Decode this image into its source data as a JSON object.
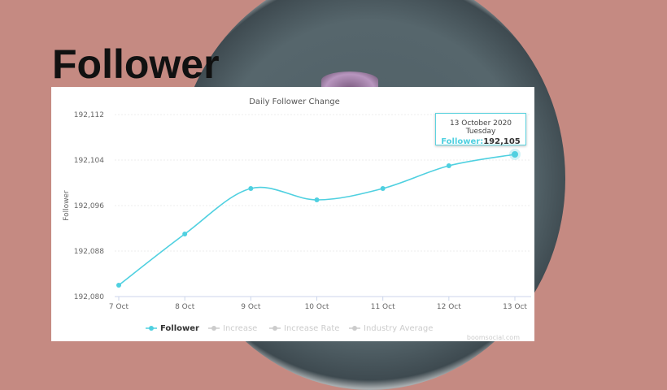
{
  "heading": "Follower",
  "watermark": "boomsocial.com",
  "tooltip": {
    "date": "13 October 2020 Tuesday",
    "label": "Follower:",
    "value": "192,105"
  },
  "colors": {
    "series": "#4fd0e0",
    "background": "#c58a82"
  },
  "chart_data": {
    "type": "line",
    "title": "Daily Follower Change",
    "ylabel": "Follower",
    "xlabel": "",
    "categories": [
      "7 Oct",
      "8 Oct",
      "9 Oct",
      "10 Oct",
      "11 Oct",
      "12 Oct",
      "13 Oct"
    ],
    "series": [
      {
        "name": "Follower",
        "values": [
          192082,
          192091,
          192099,
          192097,
          192099,
          192103,
          192105
        ]
      }
    ],
    "yticks": [
      "192,080",
      "192,088",
      "192,096",
      "192,104",
      "192,112"
    ],
    "ylim": [
      192080,
      192112
    ],
    "grid": true,
    "legend": {
      "position": "bottom",
      "items": [
        {
          "label": "Follower",
          "active": true
        },
        {
          "label": "Increase",
          "active": false
        },
        {
          "label": "Increase Rate",
          "active": false
        },
        {
          "label": "Industry Average",
          "active": false
        }
      ]
    }
  }
}
